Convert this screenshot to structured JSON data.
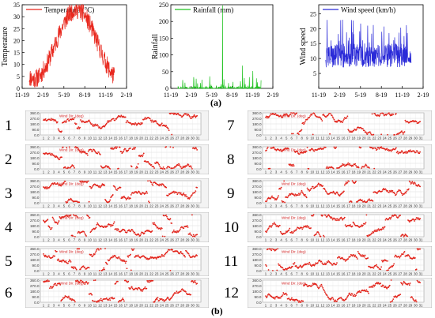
{
  "panel_a_label": "(a)",
  "panel_b_label": "(b)",
  "top_charts": [
    {
      "type": "line",
      "legend": "Temperature (°C)",
      "ylabel": "Temperature",
      "color": "#e8281e",
      "yticks": [
        "0",
        "5",
        "10",
        "15",
        "20",
        "25",
        "30",
        "35"
      ],
      "ylim": [
        0,
        35
      ],
      "xticks": [
        "11-19",
        "2-19",
        "5-19",
        "8-19",
        "11-19",
        "2-19"
      ],
      "x_range_months": [
        "2018-11",
        "2020-02"
      ],
      "data_months": [
        "2018-12",
        "2019-12"
      ],
      "shape": "seasonal, low ~3 in Dec–Jan rising to peak ~34 in late Jul, back to ~3 in Dec"
    },
    {
      "type": "line",
      "legend": "Rainfall (mm)",
      "ylabel": "Rainfall",
      "color": "#22c322",
      "yticks": [
        "0",
        "50",
        "100",
        "150",
        "200",
        "250"
      ],
      "ylim": [
        0,
        250
      ],
      "xticks": [
        "11-19",
        "2-19",
        "5-19",
        "8-19",
        "11-19",
        "2-19"
      ],
      "x_range_months": [
        "2018-11",
        "2020-02"
      ],
      "data_months": [
        "2018-12",
        "2019-12"
      ],
      "peaks": [
        {
          "date": "2019-06-15",
          "value": 248
        },
        {
          "date": "2019-09-10",
          "value": 68
        },
        {
          "date": "2019-10-25",
          "value": 52
        },
        {
          "date": "2019-04-20",
          "value": 36
        },
        {
          "date": "2019-11-10",
          "value": 30
        }
      ]
    },
    {
      "type": "line",
      "legend": "Wind speed (km/h)",
      "ylabel": "Wind speed",
      "color": "#2a2ad8",
      "yticks": [
        "5",
        "10",
        "15",
        "20",
        "25"
      ],
      "ylim": [
        0,
        28
      ],
      "xticks": [
        "11-19",
        "2-19",
        "5-19",
        "8-19",
        "11-19",
        "2-19"
      ],
      "x_range_months": [
        "2018-11",
        "2020-02"
      ],
      "data_months": [
        "2018-12",
        "2019-12"
      ],
      "shape": "noisy daily series between ~4 and ~26, mostly 6–15"
    }
  ],
  "wind_direction_panels": {
    "series_name": "Wind Dir. (deg)",
    "yticks": [
      "360.0",
      "270.0",
      "180.0",
      "90.0",
      "0.0"
    ],
    "ylim": [
      0,
      360
    ],
    "days_shown": 31,
    "dot_color": "#e2231a",
    "months": [
      {
        "number": "1"
      },
      {
        "number": "2"
      },
      {
        "number": "3"
      },
      {
        "number": "4"
      },
      {
        "number": "5"
      },
      {
        "number": "6"
      },
      {
        "number": "7"
      },
      {
        "number": "8"
      },
      {
        "number": "9"
      },
      {
        "number": "10"
      },
      {
        "number": "11"
      },
      {
        "number": "12"
      }
    ]
  }
}
